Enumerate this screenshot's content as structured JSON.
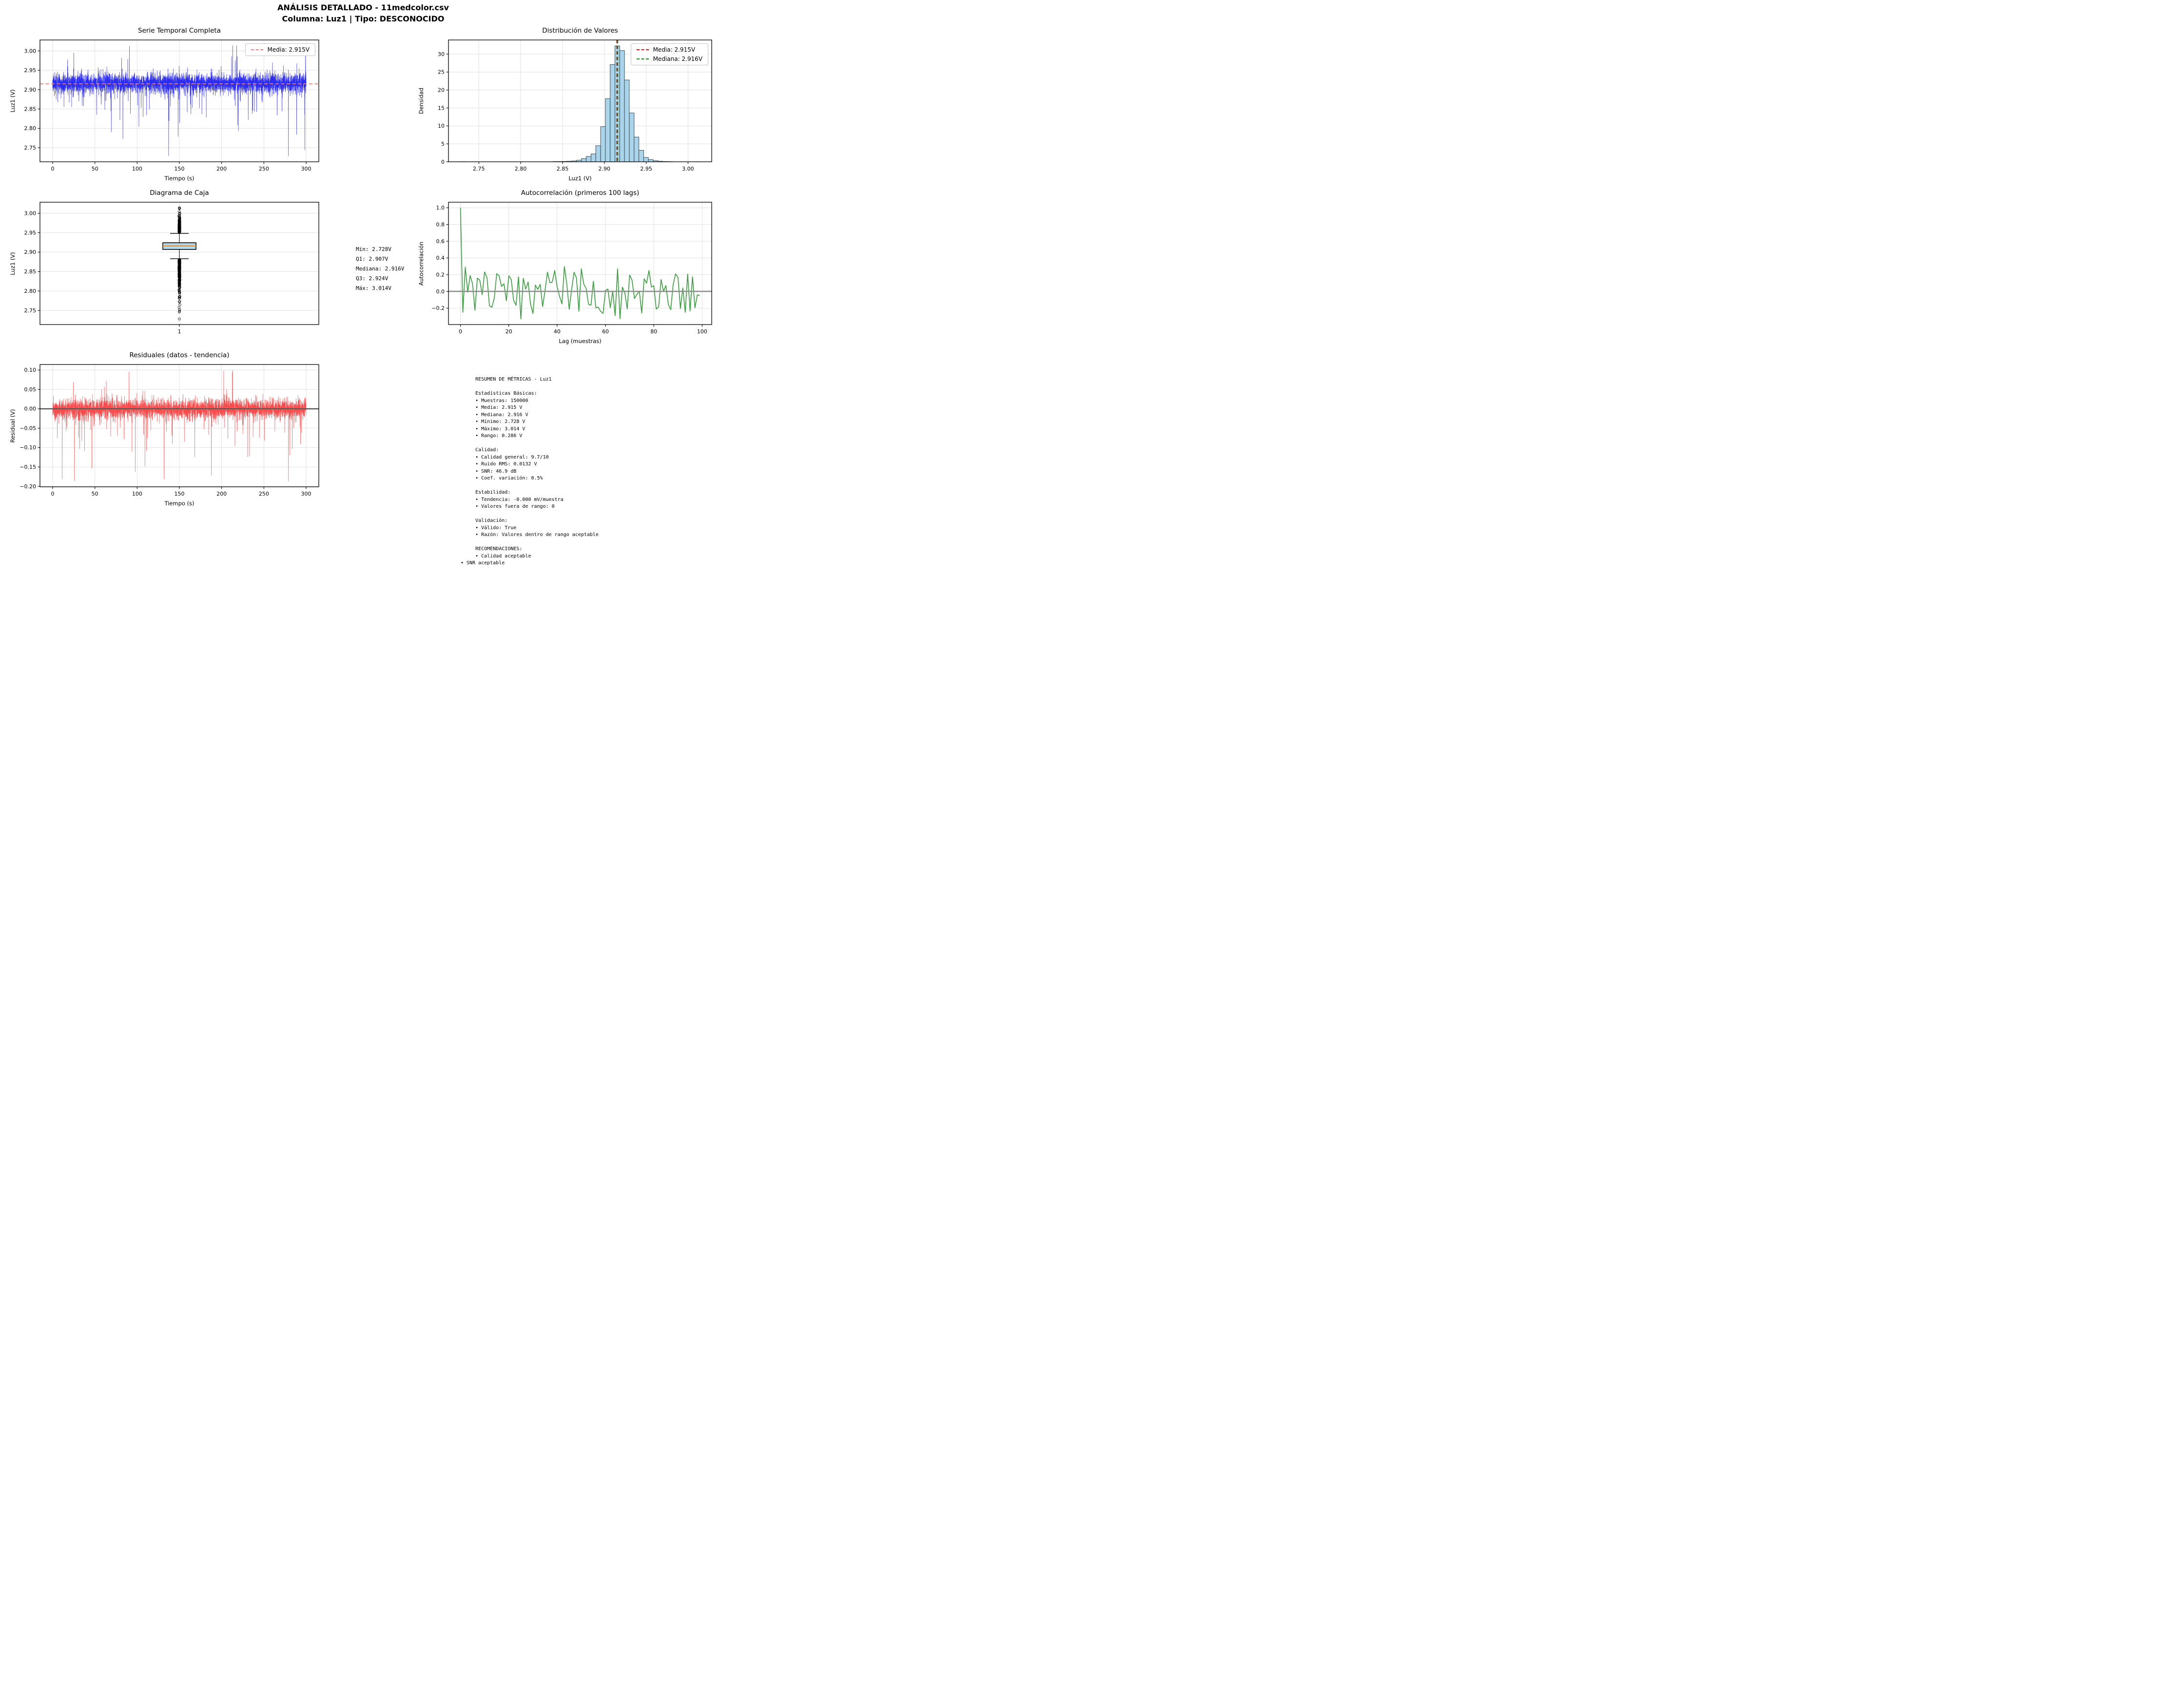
{
  "header": {
    "title_line1": "ANÁLISIS DETALLADO - 11medcolor.csv",
    "title_line2": "Columna: Luz1 | Tipo: DESCONOCIDO"
  },
  "chart_data": [
    {
      "id": "timeseries",
      "type": "line-noise",
      "title": "Serie Temporal Completa",
      "xlabel": "Tiempo (s)",
      "ylabel": "Luz1 (V)",
      "xlim": [
        -15,
        315
      ],
      "ylim": [
        2.7137,
        3.0283
      ],
      "xticks": [
        0,
        50,
        100,
        150,
        200,
        250,
        300
      ],
      "xtick_labels": [
        "0",
        "50",
        "100",
        "150",
        "200",
        "250",
        "300"
      ],
      "yticks": [
        2.75,
        2.8,
        2.85,
        2.9,
        2.95,
        3.0
      ],
      "ytick_labels": [
        "2.75",
        "2.80",
        "2.85",
        "2.90",
        "2.95",
        "3.00"
      ],
      "grid": true,
      "line_color": "#2d2df0",
      "line_width": 0.7,
      "hlines": [
        {
          "y": 2.915,
          "color": "#f57d7d",
          "dash": true,
          "width": 1.8
        }
      ],
      "legend": [
        {
          "label": "Media: 2.915V",
          "color": "#f57d7d",
          "dash": true
        }
      ],
      "synthesis": {
        "seed": 1337,
        "n": 4200,
        "t0": 0,
        "t1": 300,
        "mean": 2.9165,
        "sigma": 0.0125,
        "band": 0.038,
        "p_down": 0.028,
        "down_min": 0.012,
        "down_scale": 0.045,
        "p_up": 0.012,
        "up_min": 0.004,
        "up_scale": 0.028,
        "floor": 2.728,
        "ceil": 3.014,
        "min_at": 0.93,
        "max_at": 0.71
      }
    },
    {
      "id": "histogram",
      "type": "bar",
      "title": "Distribución de Valores",
      "xlabel": "Luz1 (V)",
      "ylabel": "Densidad",
      "xlim": [
        2.7137,
        3.0283
      ],
      "ylim": [
        0,
        33.95
      ],
      "xticks": [
        2.75,
        2.8,
        2.85,
        2.9,
        2.95,
        3.0
      ],
      "xtick_labels": [
        "2.75",
        "2.80",
        "2.85",
        "2.90",
        "2.95",
        "3.00"
      ],
      "yticks": [
        0,
        5,
        10,
        15,
        20,
        25,
        30
      ],
      "ytick_labels": [
        "0",
        "5",
        "10",
        "15",
        "20",
        "25",
        "30"
      ],
      "grid": true,
      "bar_width": 0.00572,
      "bar_fill": "#a9d4ea",
      "bar_edge": "#2e3a44",
      "bars": {
        "centers": [
          2.731,
          2.8412,
          2.8469,
          2.8526,
          2.8583,
          2.864,
          2.8698,
          2.8755,
          2.8812,
          2.8869,
          2.8926,
          2.8984,
          2.9041,
          2.9098,
          2.9155,
          2.9212,
          2.9269,
          2.9327,
          2.9384,
          2.9441,
          2.9498,
          2.9555,
          2.9613,
          2.967,
          2.9727,
          2.9784,
          3.012
        ],
        "heights": [
          0.03,
          0.05,
          0.07,
          0.1,
          0.15,
          0.25,
          0.45,
          0.9,
          1.5,
          2.2,
          4.5,
          9.8,
          17.6,
          27.1,
          32.3,
          31.0,
          22.8,
          13.6,
          6.9,
          3.2,
          1.2,
          0.6,
          0.3,
          0.15,
          0.08,
          0.05,
          0.02
        ]
      },
      "vlines": [
        {
          "x": 2.915,
          "color": "#d40000",
          "dash": true,
          "width": 1.8
        },
        {
          "x": 2.916,
          "color": "#1e8a1e",
          "dash": true,
          "width": 1.8
        }
      ],
      "legend": [
        {
          "label": "Media: 2.915V",
          "color": "#e01212",
          "dash": true
        },
        {
          "label": "Mediana: 2.916V",
          "color": "#1e8a1e",
          "dash": true
        }
      ]
    },
    {
      "id": "boxplot",
      "type": "box",
      "title": "Diagrama de Caja",
      "xlabel": "",
      "ylabel": "Luz1 (V)",
      "xlim": [
        0.5,
        1.5
      ],
      "ylim": [
        2.7137,
        3.0283
      ],
      "xticks": [
        1
      ],
      "xtick_labels": [
        "1"
      ],
      "yticks": [
        2.75,
        2.8,
        2.85,
        2.9,
        2.95,
        3.0
      ],
      "ytick_labels": [
        "2.75",
        "2.80",
        "2.85",
        "2.90",
        "2.95",
        "3.00"
      ],
      "grid": true,
      "box": {
        "q1": 2.907,
        "median": 2.916,
        "q3": 2.924,
        "whisker_low": 2.883,
        "whisker_high": 2.948,
        "min": 2.728,
        "max": 3.014,
        "fill": "#b5dcec",
        "edge": "#000000",
        "median_color": "#ff8c1a"
      },
      "outliers": {
        "seed": 7,
        "n_low": 240,
        "n_high": 130
      }
    },
    {
      "id": "acf",
      "type": "line-acf",
      "title": "Autocorrelación (primeros 100 lags)",
      "xlabel": "Lag (muestras)",
      "ylabel": "Autocorrelación",
      "xlim": [
        -4.95,
        103.95
      ],
      "ylim": [
        -0.3965,
        1.0665
      ],
      "xticks": [
        0,
        20,
        40,
        60,
        80,
        100
      ],
      "xtick_labels": [
        "0",
        "20",
        "40",
        "60",
        "80",
        "100"
      ],
      "yticks": [
        -0.2,
        0.0,
        0.2,
        0.4,
        0.6,
        0.8,
        1.0
      ],
      "ytick_labels": [
        "−0.2",
        "0.0",
        "0.2",
        "0.4",
        "0.6",
        "0.8",
        "1.0"
      ],
      "grid": true,
      "line_color": "#3c9e40",
      "line_width": 1.7,
      "hlines": [
        {
          "y": 0,
          "color": "#8e8e8e",
          "dash": false,
          "width": 2.6
        }
      ],
      "synthesis": {
        "seed": 23,
        "n": 100,
        "lo": -0.27,
        "hi": 0.24,
        "anchors": {
          "0": 1.0,
          "1": -0.25,
          "2": 0.29,
          "25": -0.33,
          "36": 0.23,
          "39": 0.25,
          "50": 0.27,
          "64": -0.29,
          "65": 0.27,
          "78": 0.25,
          "89": 0.21,
          "93": -0.25,
          "99": -0.05
        }
      }
    },
    {
      "id": "residuals",
      "type": "line-noise",
      "title": "Residuales (datos - tendencia)",
      "xlabel": "Tiempo (s)",
      "ylabel": "Residual (V)",
      "xlim": [
        -15,
        315
      ],
      "ylim": [
        -0.2013,
        0.1143
      ],
      "xticks": [
        0,
        50,
        100,
        150,
        200,
        250,
        300
      ],
      "xtick_labels": [
        "0",
        "50",
        "100",
        "150",
        "200",
        "250",
        "300"
      ],
      "yticks": [
        -0.2,
        -0.15,
        -0.1,
        -0.05,
        0.0,
        0.05,
        0.1
      ],
      "ytick_labels": [
        "−0.20",
        "−0.15",
        "−0.10",
        "−0.05",
        "0.00",
        "0.05",
        "0.10"
      ],
      "grid": true,
      "line_color": "#f84c4c",
      "line_width": 0.7,
      "hlines": [
        {
          "y": 0,
          "color": "#999999",
          "dash": false,
          "width": 2.6
        },
        {
          "y": 0,
          "color": "#1a1a1a",
          "dash": false,
          "width": 1.1
        }
      ],
      "synthesis": {
        "seed": 4242,
        "n": 4200,
        "t0": 0,
        "t1": 300,
        "mean": 0.0,
        "sigma": 0.0125,
        "band": 0.04,
        "p_down": 0.028,
        "down_min": 0.008,
        "down_scale": 0.045,
        "p_up": 0.012,
        "up_min": 0.003,
        "up_scale": 0.028,
        "floor": -0.187,
        "ceil": 0.1,
        "min_at": 0.93,
        "max_at": 0.71
      }
    }
  ],
  "box_stats": {
    "lines": [
      "Mín: 2.728V",
      "Q1: 2.907V",
      "Mediana: 2.916V",
      "Q3: 2.924V",
      "Máx: 3.014V"
    ]
  },
  "summary": {
    "lines": [
      "     RESUMEN DE MÉTRICAS - Luz1",
      "",
      "     Estadísticas Básicas:",
      "     • Muestras: 150000",
      "     • Media: 2.915 V",
      "     • Mediana: 2.916 V",
      "     • Mínimo: 2.728 V",
      "     • Máximo: 3.014 V",
      "     • Rango: 0.286 V",
      "",
      "     Calidad:",
      "     • Calidad general: 9.7/10",
      "     • Ruido RMS: 0.0132 V",
      "     • SNR: 46.9 dB",
      "     • Coef. variación: 0.5%",
      "",
      "     Estabilidad:",
      "     • Tendencia: -0.000 mV/muestra",
      "     • Valores fuera de rango: 0",
      "",
      "     Validación:",
      "     • Válido: True",
      "     • Razón: Valores dentro de rango aceptable",
      "",
      "     RECOMENDACIONES:",
      "     • Calidad aceptable",
      "• SNR aceptable"
    ]
  }
}
